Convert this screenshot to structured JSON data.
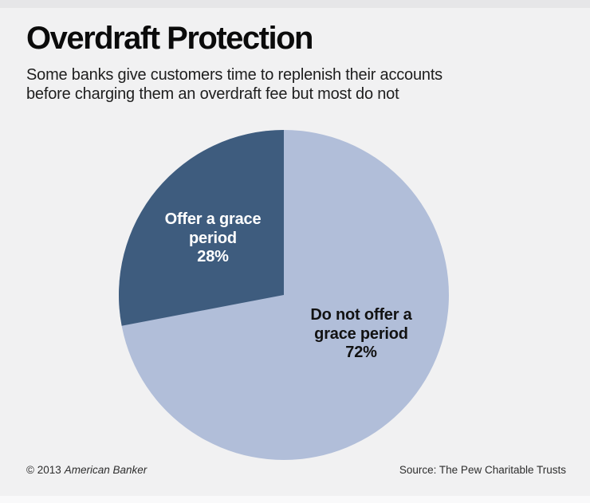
{
  "header": {
    "title": "Overdraft Protection",
    "subtitle_lines": [
      "Some banks give customers time to replenish their accounts",
      "before charging them an overdraft fee but most do not"
    ]
  },
  "chart_data": {
    "type": "pie",
    "title": "Overdraft Protection",
    "subtitle": "Some banks give customers time to replenish their accounts before charging them an overdraft fee but most do not",
    "start_angle_deg": 90,
    "direction": "counterclockwise",
    "legend_position": "none",
    "labels_inside": true,
    "categories": [
      "Offer a grace period",
      "Do not offer a grace period"
    ],
    "values": [
      28,
      72
    ],
    "slices": [
      {
        "label": "Offer a grace period",
        "value_pct": 28,
        "color": "#3e5c7e",
        "label_color": "#ffffff",
        "label_lines": [
          "Offer a grace",
          "period",
          "28%"
        ]
      },
      {
        "label": "Do not offer a grace period",
        "value_pct": 72,
        "color": "#b1bed9",
        "label_color": "#121212",
        "label_lines": [
          "Do not offer a",
          "grace period",
          "72%"
        ]
      }
    ]
  },
  "footer": {
    "copyright_prefix": "© 2013",
    "copyright_brand": "American Banker",
    "source": "Source: The Pew Charitable Trusts"
  },
  "colors": {
    "background": "#f1f1f2",
    "top_strip": "#e6e6e8",
    "bottom_strip": "#f9f9fa",
    "title_text": "#0b0b0b"
  }
}
